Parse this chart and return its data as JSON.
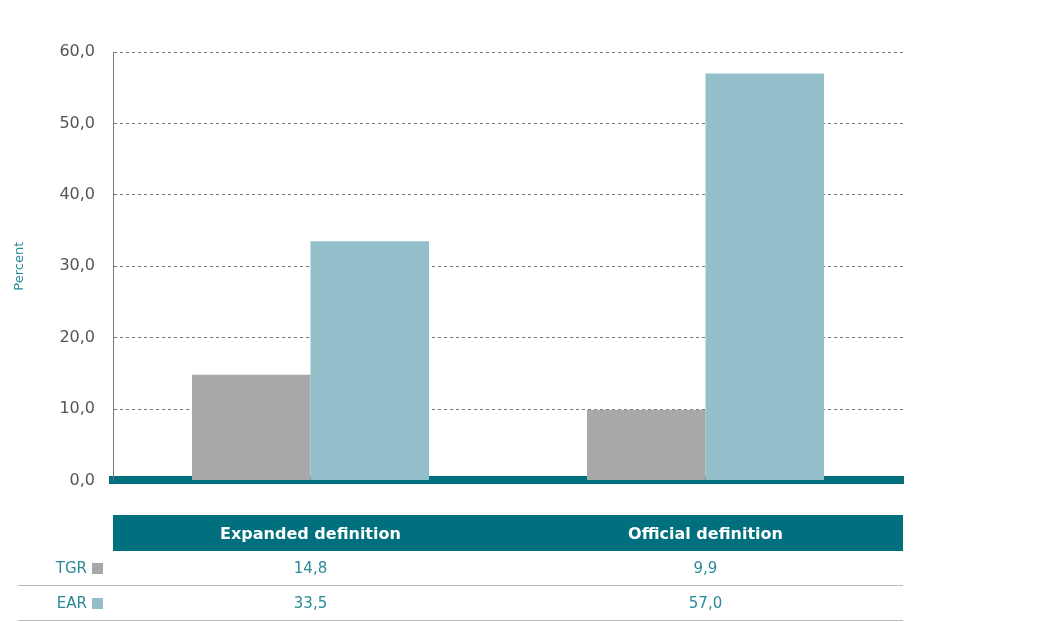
{
  "chart_data": {
    "type": "bar",
    "ylabel": "Percent",
    "categories": [
      "Expanded definition",
      "Official definition"
    ],
    "series": [
      {
        "name": "TGR",
        "color": "#a7a8aa",
        "values": [
          14.8,
          9.9
        ],
        "value_labels": [
          "14,8",
          "9,9"
        ]
      },
      {
        "name": "EAR",
        "color": "#93bfcb",
        "values": [
          33.5,
          57.0
        ],
        "value_labels": [
          "33,5",
          "57,0"
        ]
      }
    ],
    "ylim": [
      0,
      60
    ],
    "yticks": [
      {
        "value": 0,
        "label": "0,0"
      },
      {
        "value": 10,
        "label": "10,0"
      },
      {
        "value": 20,
        "label": "20,0"
      },
      {
        "value": 30,
        "label": "30,0"
      },
      {
        "value": 40,
        "label": "40,0"
      },
      {
        "value": 50,
        "label": "50,0"
      },
      {
        "value": 60,
        "label": "60,0"
      }
    ],
    "grid": "y",
    "legend": "bottom left"
  }
}
